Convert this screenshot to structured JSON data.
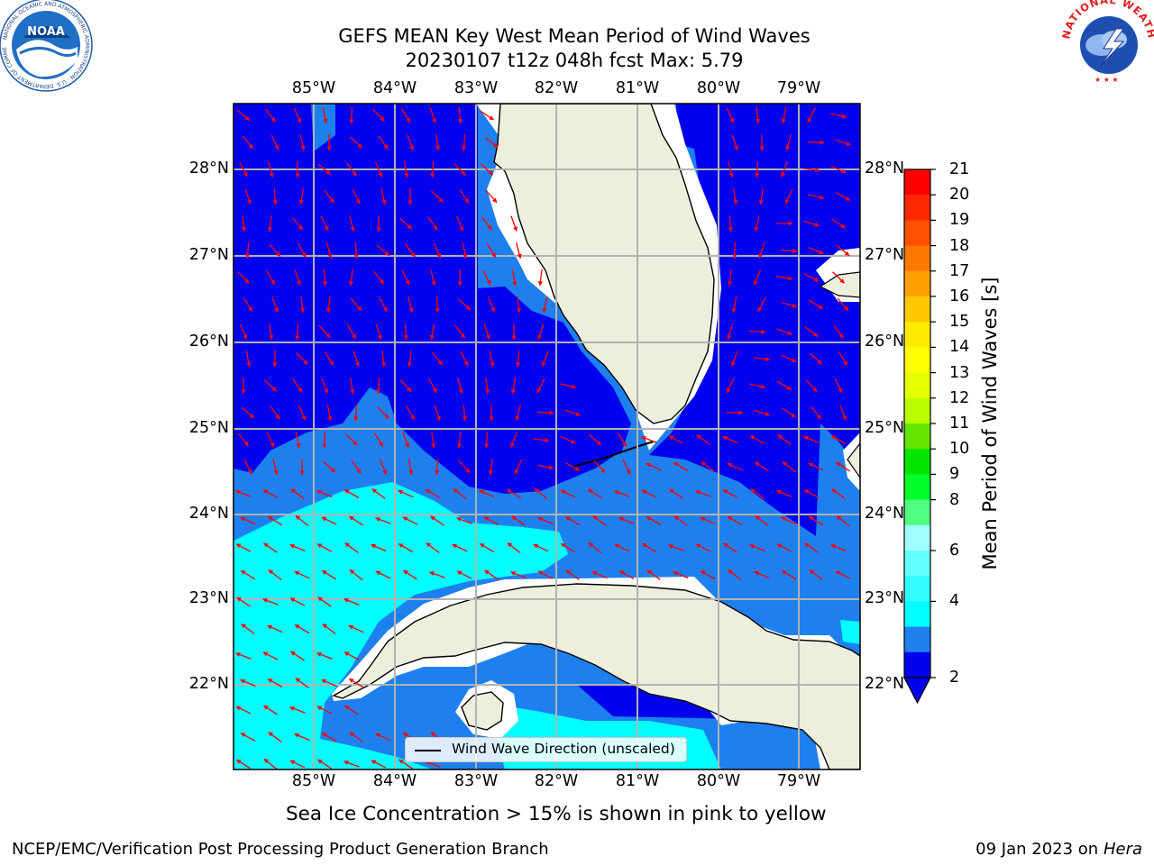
{
  "title": {
    "line1": "GEFS MEAN Key West Mean Period of Wind Waves",
    "line2": "20230107 t12z 048h fcst   Max: 5.79"
  },
  "map": {
    "lon_labels": [
      "85°W",
      "84°W",
      "83°W",
      "82°W",
      "81°W",
      "80°W",
      "79°W"
    ],
    "lat_labels": [
      "28°N",
      "27°N",
      "26°N",
      "25°N",
      "24°N",
      "23°N",
      "22°N"
    ],
    "colors": {
      "land": "#eeeedd",
      "band_2_4": "#0000ee",
      "band_4_6": "#1e80ee",
      "band_6_8": "#00ffff",
      "vectors": "#ff0000",
      "grid": "#b3b3b3"
    },
    "legend": {
      "label": "Wind Wave Direction (unscaled)"
    }
  },
  "colorbar": {
    "label": "Mean Period of Wind Waves [s]",
    "ticks": [
      "21",
      "20",
      "19",
      "18",
      "17",
      "16",
      "15",
      "14",
      "13",
      "12",
      "11",
      "10",
      "9",
      "8",
      "6",
      "4",
      "2"
    ],
    "colors": [
      "#ff0000",
      "#ff2800",
      "#ff5000",
      "#ff7800",
      "#ffa000",
      "#ffc800",
      "#ffeb00",
      "#ffff00",
      "#e6ff00",
      "#b9ff00",
      "#64e600",
      "#00e600",
      "#00ff28",
      "#50ff80",
      "#a0ffff",
      "#64ffff",
      "#32ffff",
      "#00ffff",
      "#1e80ee",
      "#0000ee"
    ]
  },
  "notes": {
    "sea_ice": "Sea Ice Concentration > 15% is shown in pink to yellow",
    "footer_left": "NCEP/EMC/Verification Post Processing Product Generation Branch",
    "footer_right_prefix": "09 Jan 2023 on ",
    "footer_right_italic": "Hera"
  },
  "logos": {
    "left": "NOAA",
    "left_ring": "NATIONAL OCEANIC AND ATMOSPHERIC ADMINISTRATION · U.S. DEPARTMENT OF COMMERCE",
    "right_ring": "NATIONAL WEATHER SERVICE"
  }
}
